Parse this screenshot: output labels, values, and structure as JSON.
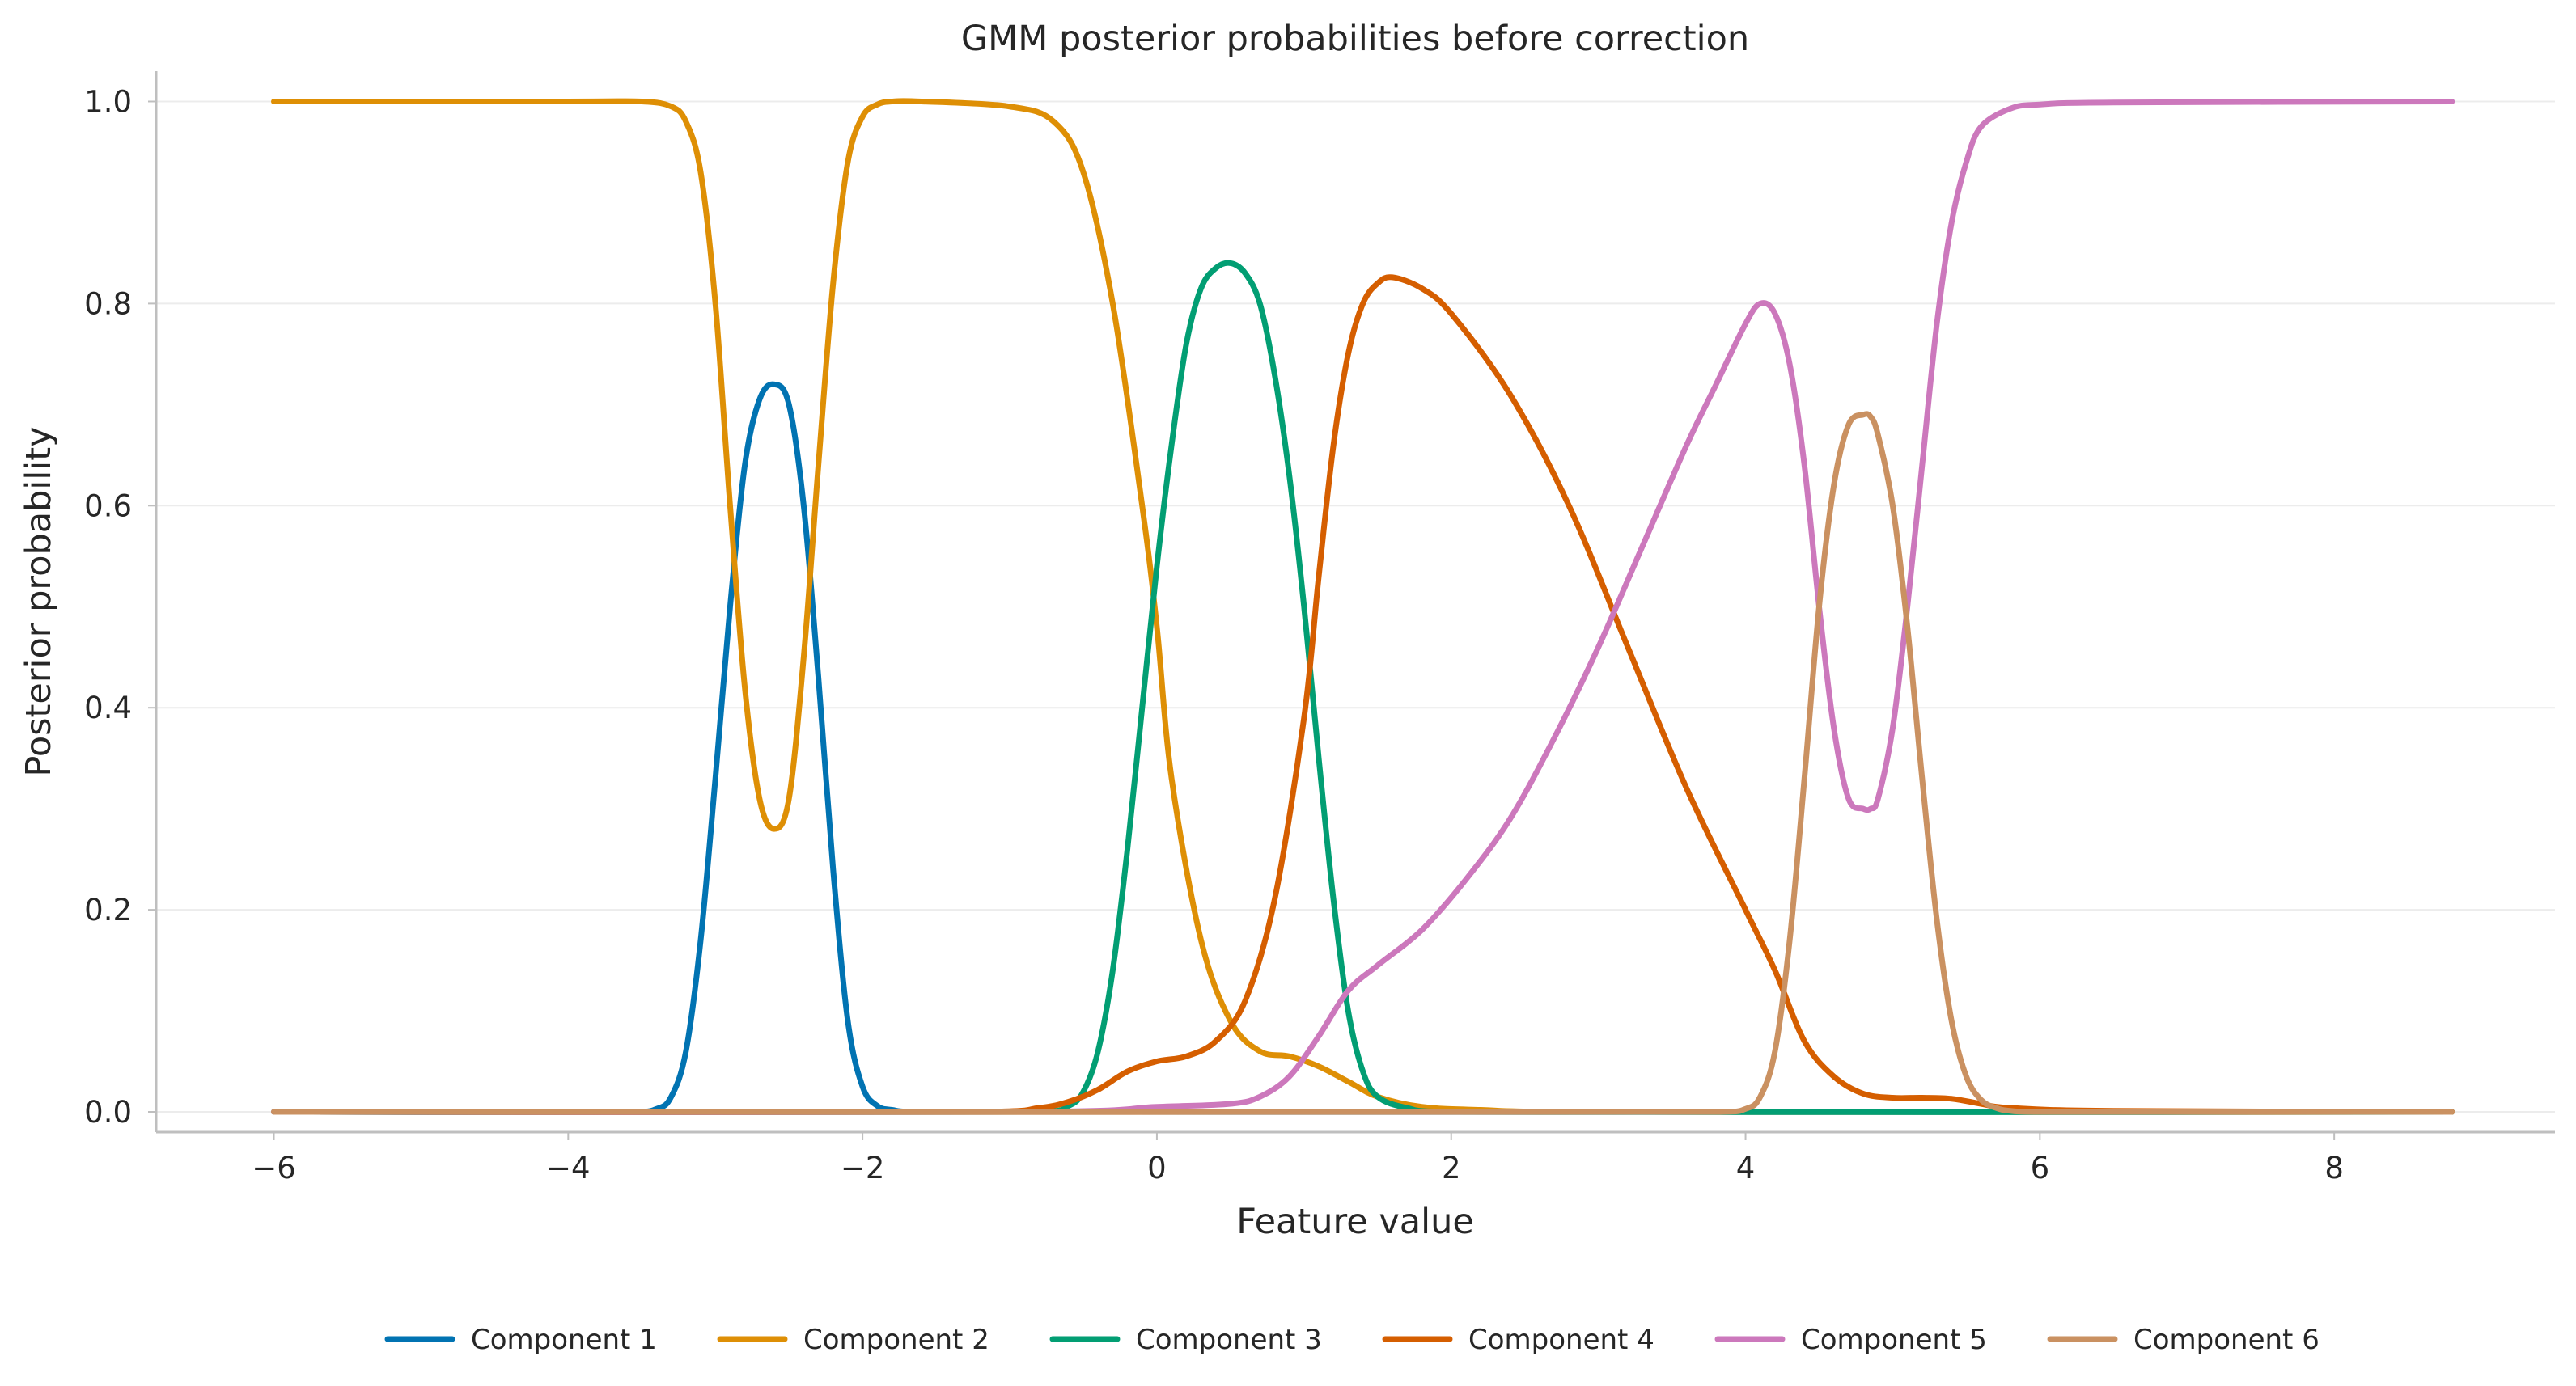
{
  "chart_data": {
    "type": "line",
    "title": "GMM posterior probabilities before correction",
    "xlabel": "Feature value",
    "ylabel": "Posterior probability",
    "xlim": [
      -6.8,
      9.5
    ],
    "ylim": [
      -0.02,
      1.03
    ],
    "xticks": [
      -6,
      -4,
      -2,
      0,
      2,
      4,
      6,
      8
    ],
    "xtick_labels": [
      "−6",
      "−4",
      "−2",
      "0",
      "2",
      "4",
      "6",
      "8"
    ],
    "yticks": [
      0.0,
      0.2,
      0.4,
      0.6,
      0.8,
      1.0
    ],
    "ytick_labels": [
      "0.0",
      "0.2",
      "0.4",
      "0.6",
      "0.8",
      "1.0"
    ],
    "grid": "horizontal",
    "legend_position": "bottom-center",
    "series": [
      {
        "name": "Component 1",
        "color": "#0173b2",
        "x": [
          -6.0,
          -3.6,
          -3.4,
          -3.3,
          -3.2,
          -3.1,
          -3.0,
          -2.9,
          -2.8,
          -2.7,
          -2.6,
          -2.5,
          -2.4,
          -2.3,
          -2.2,
          -2.1,
          -2.0,
          -1.9,
          -1.8,
          -1.6,
          8.8
        ],
        "values": [
          0.0,
          0.0,
          0.003,
          0.015,
          0.06,
          0.17,
          0.33,
          0.5,
          0.64,
          0.705,
          0.72,
          0.7,
          0.6,
          0.43,
          0.24,
          0.09,
          0.025,
          0.006,
          0.002,
          0.0,
          0.0
        ]
      },
      {
        "name": "Component 2",
        "color": "#de8f05",
        "x": [
          -6.0,
          -4.0,
          -3.5,
          -3.3,
          -3.2,
          -3.1,
          -3.0,
          -2.9,
          -2.8,
          -2.7,
          -2.6,
          -2.5,
          -2.4,
          -2.3,
          -2.2,
          -2.1,
          -2.0,
          -1.9,
          -1.8,
          -1.6,
          -1.0,
          -0.7,
          -0.5,
          -0.3,
          -0.1,
          0.0,
          0.1,
          0.3,
          0.5,
          0.7,
          0.9,
          1.1,
          1.3,
          1.5,
          1.8,
          2.2,
          3.0,
          8.8
        ],
        "values": [
          1.0,
          1.0,
          1.0,
          0.995,
          0.98,
          0.93,
          0.8,
          0.6,
          0.42,
          0.31,
          0.28,
          0.31,
          0.45,
          0.64,
          0.82,
          0.94,
          0.985,
          0.997,
          1.0,
          1.0,
          0.995,
          0.98,
          0.93,
          0.8,
          0.6,
          0.48,
          0.33,
          0.17,
          0.09,
          0.06,
          0.055,
          0.045,
          0.03,
          0.015,
          0.005,
          0.002,
          0.0,
          0.0
        ]
      },
      {
        "name": "Component 3",
        "color": "#029e73",
        "x": [
          -6.0,
          -0.8,
          -0.6,
          -0.5,
          -0.4,
          -0.3,
          -0.2,
          -0.1,
          0.0,
          0.1,
          0.2,
          0.3,
          0.4,
          0.5,
          0.6,
          0.7,
          0.8,
          0.9,
          1.0,
          1.1,
          1.2,
          1.3,
          1.4,
          1.5,
          1.7,
          2.0,
          8.8
        ],
        "values": [
          0.0,
          0.0,
          0.006,
          0.02,
          0.06,
          0.14,
          0.26,
          0.4,
          0.54,
          0.66,
          0.76,
          0.815,
          0.835,
          0.84,
          0.83,
          0.8,
          0.73,
          0.63,
          0.5,
          0.35,
          0.21,
          0.1,
          0.04,
          0.015,
          0.004,
          0.0,
          0.0
        ]
      },
      {
        "name": "Component 4",
        "color": "#d55e00",
        "x": [
          -6.0,
          -1.2,
          -0.8,
          -0.6,
          -0.4,
          -0.2,
          0.0,
          0.2,
          0.4,
          0.6,
          0.8,
          1.0,
          1.1,
          1.2,
          1.3,
          1.4,
          1.5,
          1.6,
          1.8,
          2.0,
          2.4,
          2.8,
          3.2,
          3.6,
          4.0,
          4.2,
          4.4,
          4.6,
          4.8,
          5.0,
          5.2,
          5.4,
          5.6,
          5.8,
          6.5,
          8.8
        ],
        "values": [
          0.0,
          0.0,
          0.004,
          0.01,
          0.022,
          0.04,
          0.05,
          0.055,
          0.07,
          0.11,
          0.21,
          0.39,
          0.53,
          0.66,
          0.75,
          0.8,
          0.82,
          0.826,
          0.815,
          0.79,
          0.71,
          0.6,
          0.46,
          0.32,
          0.2,
          0.14,
          0.07,
          0.035,
          0.018,
          0.014,
          0.014,
          0.013,
          0.008,
          0.004,
          0.001,
          0.0
        ]
      },
      {
        "name": "Component 5",
        "color": "#cc78bc",
        "x": [
          -6.0,
          -1.0,
          0.0,
          0.5,
          0.7,
          0.9,
          1.1,
          1.3,
          1.5,
          1.8,
          2.1,
          2.4,
          2.7,
          3.0,
          3.3,
          3.6,
          3.8,
          4.0,
          4.1,
          4.2,
          4.3,
          4.4,
          4.5,
          4.6,
          4.7,
          4.8,
          4.85,
          4.9,
          5.0,
          5.1,
          5.2,
          5.3,
          5.4,
          5.5,
          5.6,
          5.8,
          6.0,
          6.5,
          8.8
        ],
        "values": [
          0.0,
          0.0,
          0.005,
          0.008,
          0.015,
          0.035,
          0.075,
          0.12,
          0.145,
          0.18,
          0.23,
          0.29,
          0.37,
          0.46,
          0.56,
          0.66,
          0.72,
          0.78,
          0.8,
          0.79,
          0.74,
          0.64,
          0.5,
          0.38,
          0.31,
          0.3,
          0.3,
          0.31,
          0.38,
          0.5,
          0.64,
          0.78,
          0.88,
          0.94,
          0.975,
          0.993,
          0.997,
          0.999,
          1.0
        ]
      },
      {
        "name": "Component 6",
        "color": "#ca9161",
        "x": [
          -6.0,
          3.8,
          4.0,
          4.1,
          4.2,
          4.3,
          4.4,
          4.5,
          4.6,
          4.7,
          4.8,
          4.85,
          4.9,
          5.0,
          5.1,
          5.2,
          5.3,
          5.4,
          5.5,
          5.6,
          5.7,
          5.8,
          6.0,
          8.8
        ],
        "values": [
          0.0,
          0.0,
          0.003,
          0.015,
          0.06,
          0.17,
          0.33,
          0.5,
          0.62,
          0.68,
          0.69,
          0.688,
          0.67,
          0.6,
          0.48,
          0.33,
          0.19,
          0.09,
          0.035,
          0.012,
          0.004,
          0.001,
          0.0,
          0.0
        ]
      }
    ]
  }
}
